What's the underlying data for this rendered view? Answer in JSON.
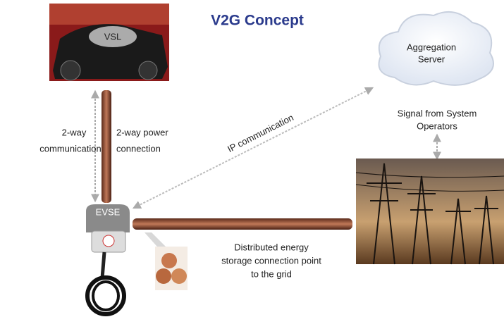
{
  "title": "V2G Concept",
  "vehicle": {
    "label": "VSL"
  },
  "aggregation_server": {
    "lines": [
      "Aggregation",
      "Server"
    ]
  },
  "signal": {
    "lines": [
      "Signal from System",
      "Operators"
    ]
  },
  "ip_link": {
    "label": "IP communication"
  },
  "communication_link": {
    "lines": [
      "2-way",
      "communication"
    ]
  },
  "power_link": {
    "lines": [
      "2-way power",
      "connection"
    ]
  },
  "evse": {
    "label": "EVSE"
  },
  "grid_connection": {
    "lines": [
      "Distributed energy",
      "storage connection point",
      "to the grid"
    ]
  }
}
